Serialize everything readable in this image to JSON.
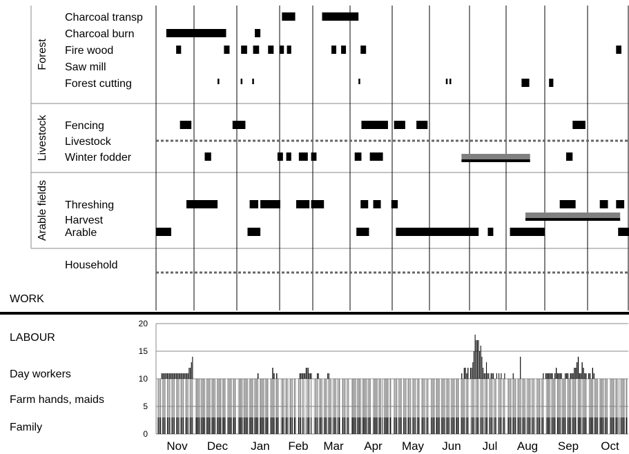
{
  "chart_data": [
    {
      "type": "timeline",
      "title": "WORK",
      "x_unit": "month index from start of Nov (0 = 1 Nov, 12 = end of Oct)",
      "groups": [
        {
          "name": "Forest",
          "activities": [
            {
              "name": "Charcoal transp",
              "bars": [
                [
                  3.07,
                  3.47
                ],
                [
                  4.25,
                  5.2
                ]
              ]
            },
            {
              "name": "Charcoal burn",
              "bars": [
                [
                  0.27,
                  1.75
                ],
                [
                  2.42,
                  2.55
                ]
              ]
            },
            {
              "name": "Fire wood",
              "bars": [
                [
                  0.53,
                  0.66
                ],
                [
                  1.7,
                  1.83
                ],
                [
                  2.1,
                  2.24
                ],
                [
                  2.38,
                  2.52
                ],
                [
                  2.73,
                  2.86
                ],
                [
                  3.0,
                  3.13
                ],
                [
                  3.22,
                  3.35
                ],
                [
                  4.5,
                  4.63
                ],
                [
                  4.76,
                  4.89
                ],
                [
                  5.25,
                  5.38
                ],
                [
                  11.7,
                  11.83
                ]
              ]
            },
            {
              "name": "Saw mill",
              "bars": []
            },
            {
              "name": "Forest cutting",
              "bars": [
                [
                  1.55,
                  1.59
                ],
                [
                  2.09,
                  2.13
                ],
                [
                  2.36,
                  2.4
                ],
                [
                  5.2,
                  5.24
                ],
                [
                  7.41,
                  7.45
                ],
                [
                  7.5,
                  7.54
                ],
                [
                  9.4,
                  9.6
                ],
                [
                  10.1,
                  10.2
                ]
              ]
            }
          ]
        },
        {
          "name": "Livestock",
          "activities": [
            {
              "name": "Fencing",
              "bars": [
                [
                  0.63,
                  0.93
                ],
                [
                  1.9,
                  2.2
                ],
                [
                  5.27,
                  5.9
                ],
                [
                  6.05,
                  6.35
                ],
                [
                  6.65,
                  6.95
                ],
                [
                  10.65,
                  10.95
                ]
              ]
            },
            {
              "name": "Livestock",
              "bars": [],
              "dotted": true
            },
            {
              "name": "Winter fodder",
              "bars": [
                [
                  1.25,
                  1.4
                ],
                [
                  2.95,
                  3.1
                ],
                [
                  3.2,
                  3.35
                ],
                [
                  3.58,
                  3.85
                ],
                [
                  3.95,
                  4.1
                ],
                [
                  5.11,
                  5.27
                ],
                [
                  5.47,
                  5.78
                ],
                [
                  10.5,
                  10.65
                ]
              ],
              "highlight": [
                7.8,
                9.62
              ]
            }
          ]
        },
        {
          "name": "Arable fields",
          "activities": [
            {
              "name": "Threshing",
              "bars": [
                [
                  0.8,
                  1.55
                ],
                [
                  2.3,
                  2.5
                ],
                [
                  2.55,
                  3.02
                ],
                [
                  3.5,
                  3.9
                ],
                [
                  3.95,
                  4.3
                ],
                [
                  5.25,
                  5.43
                ],
                [
                  5.55,
                  5.73
                ],
                [
                  5.98,
                  6.15
                ],
                [
                  10.35,
                  10.72
                ],
                [
                  11.3,
                  11.5
                ],
                [
                  11.7,
                  11.9
                ]
              ]
            },
            {
              "name": "Harvest",
              "bars": [],
              "highlight": [
                9.5,
                11.8
              ]
            },
            {
              "name": "Arable",
              "bars": [
                [
                  0,
                  0.4
                ],
                [
                  2.25,
                  2.55
                ],
                [
                  5.15,
                  5.45
                ],
                [
                  6.1,
                  8.25
                ],
                [
                  8.5,
                  8.65
                ],
                [
                  9.1,
                  10.0
                ],
                [
                  11.75,
                  12.05
                ]
              ]
            }
          ]
        },
        {
          "name": "",
          "activities": [
            {
              "name": "Household",
              "bars": [],
              "dotted": true
            }
          ]
        }
      ]
    },
    {
      "type": "bar",
      "title": "LABOUR",
      "categories": [
        "Nov",
        "Dec",
        "Jan",
        "Feb",
        "Mar",
        "Apr",
        "May",
        "Jun",
        "Jul",
        "Aug",
        "Sep",
        "Oct"
      ],
      "ylim": [
        0,
        20
      ],
      "yticks": [
        0,
        5,
        10,
        15,
        20
      ],
      "series": [
        {
          "name": "Family",
          "value": 3,
          "color": "#000000"
        },
        {
          "name": "Farm hands, maids",
          "value": 7,
          "color": "#808080"
        },
        {
          "name": "Day workers",
          "color": "#000000",
          "values_by_month": [
            [
              0,
              0,
              0,
              0,
              1,
              1,
              1,
              1,
              1,
              1,
              1,
              1,
              1,
              1,
              1,
              1,
              1,
              1,
              1,
              1,
              1,
              1,
              1,
              1,
              1,
              1,
              1,
              1,
              2,
              2,
              3,
              4
            ],
            [
              0,
              0,
              0,
              0,
              0,
              0,
              0,
              0,
              0,
              0,
              0,
              0,
              0,
              0,
              0,
              0,
              0,
              0,
              0,
              0,
              0,
              0,
              0,
              0,
              0,
              0,
              0,
              0,
              0,
              0,
              0
            ],
            [
              0,
              0,
              0,
              0,
              0,
              0,
              0,
              0,
              0,
              0,
              0,
              0,
              0,
              0,
              0,
              1,
              0,
              0,
              0,
              0,
              0,
              0,
              0,
              0,
              0,
              0,
              2,
              1,
              0,
              1,
              0
            ],
            [
              0,
              0,
              0,
              0,
              0,
              0,
              0,
              0,
              0,
              0,
              0,
              0,
              0,
              0,
              0,
              0,
              0,
              0,
              1,
              1,
              1,
              1,
              1,
              1,
              2,
              2,
              2,
              1,
              1,
              1
            ],
            [
              0,
              0,
              0,
              1,
              1,
              0,
              0,
              0,
              0,
              0,
              0,
              0,
              1,
              1,
              0,
              0,
              0,
              0,
              0,
              0,
              0,
              0,
              0,
              0,
              0,
              0,
              0,
              0,
              0,
              0,
              0
            ],
            [
              0,
              0,
              0,
              0,
              0,
              0,
              0,
              0,
              0,
              0,
              0,
              0,
              0,
              0,
              0,
              0,
              0,
              0,
              0,
              0,
              0,
              0,
              0,
              0,
              0,
              0,
              0,
              0,
              0,
              0
            ],
            [
              0,
              0,
              0,
              0,
              0,
              0,
              0,
              0,
              0,
              0,
              0,
              0,
              0,
              0,
              0,
              0,
              0,
              0,
              0,
              0,
              0,
              0,
              0,
              0,
              0,
              0,
              0,
              0,
              0,
              0,
              0
            ],
            [
              0,
              0,
              0,
              0,
              0,
              0,
              0,
              0,
              0,
              0,
              0,
              0,
              0,
              0,
              0,
              0,
              0,
              0,
              0,
              0,
              0,
              0,
              0,
              0,
              0,
              1,
              0,
              2,
              2,
              1,
              2
            ],
            [
              2,
              2,
              3,
              5,
              8,
              7,
              7,
              7,
              5,
              6,
              4,
              2,
              1,
              1,
              3,
              1,
              1,
              0,
              1,
              1,
              1,
              0,
              0,
              1,
              0,
              1,
              0,
              1,
              0,
              0,
              1
            ],
            [
              0,
              0,
              0,
              0,
              0,
              1,
              0,
              0,
              0,
              0,
              0,
              4,
              0,
              0,
              0,
              0,
              0,
              0,
              0,
              0,
              0,
              0,
              0,
              0,
              0,
              0,
              0,
              0,
              0,
              0,
              1
            ],
            [
              1,
              1,
              1,
              1,
              1,
              1,
              0,
              1,
              2,
              1,
              1,
              1,
              1,
              0,
              0,
              1,
              1,
              1,
              0,
              1,
              1,
              1,
              2,
              2,
              3,
              4,
              1,
              1,
              3,
              2,
              1,
              1
            ],
            [
              1,
              1,
              0,
              2,
              1,
              0,
              0,
              0,
              0,
              0,
              0,
              0,
              0,
              0,
              0,
              0,
              0,
              0,
              0,
              0,
              0,
              0,
              0,
              0,
              0,
              0,
              0,
              0,
              0,
              0
            ]
          ]
        }
      ]
    }
  ]
}
